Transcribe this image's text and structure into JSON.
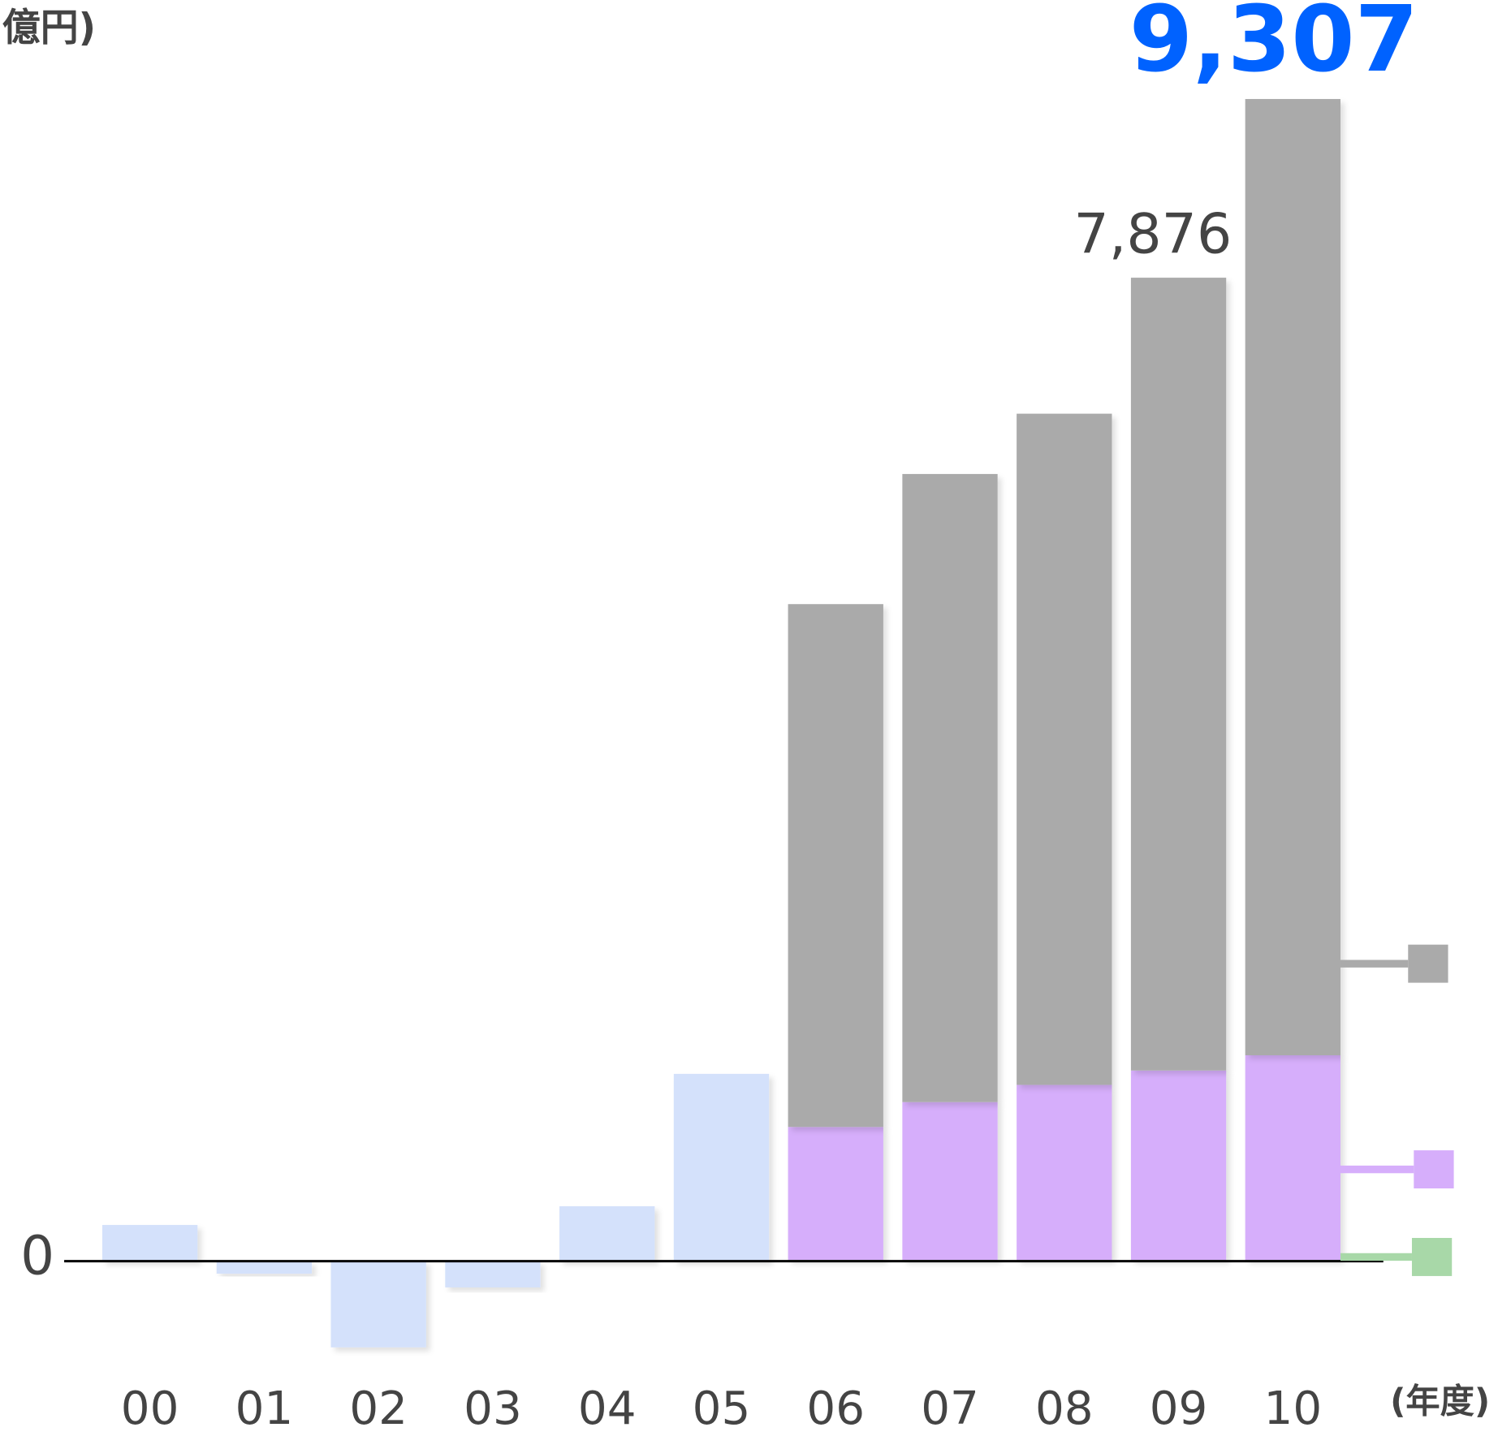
{
  "chart_data": {
    "type": "bar",
    "stacked": true,
    "unit_label": "億円)",
    "x_label": "(年度)",
    "categories": [
      "00",
      "01",
      "02",
      "03",
      "04",
      "05",
      "06",
      "07",
      "08",
      "09",
      "10"
    ],
    "series": [
      {
        "color": "#d4e1fb",
        "values": [
          290,
          -100,
          -690,
          -210,
          440,
          1500,
          null,
          null,
          null,
          null,
          null
        ]
      },
      {
        "color": "#a8d8a8",
        "values": [
          null,
          null,
          null,
          null,
          null,
          null,
          10,
          10,
          10,
          10,
          10
        ]
      },
      {
        "color": "#d6aefb",
        "values": [
          null,
          null,
          null,
          null,
          null,
          null,
          1065,
          1264,
          1402,
          1517,
          1639
        ]
      },
      {
        "color": "#aaaaaa",
        "values": [
          null,
          null,
          null,
          null,
          null,
          null,
          4187,
          5030,
          5375,
          6349,
          7658
        ]
      }
    ],
    "total_labels": [
      {
        "category": "09",
        "value": 7876,
        "label": "7,876",
        "color": "#444444"
      },
      {
        "category": "10",
        "value": 9307,
        "label": "9,307",
        "color": "#0062ff"
      }
    ],
    "ylim": [
      -1400,
      10100
    ],
    "yticks": [
      0
    ],
    "grid": false
  }
}
